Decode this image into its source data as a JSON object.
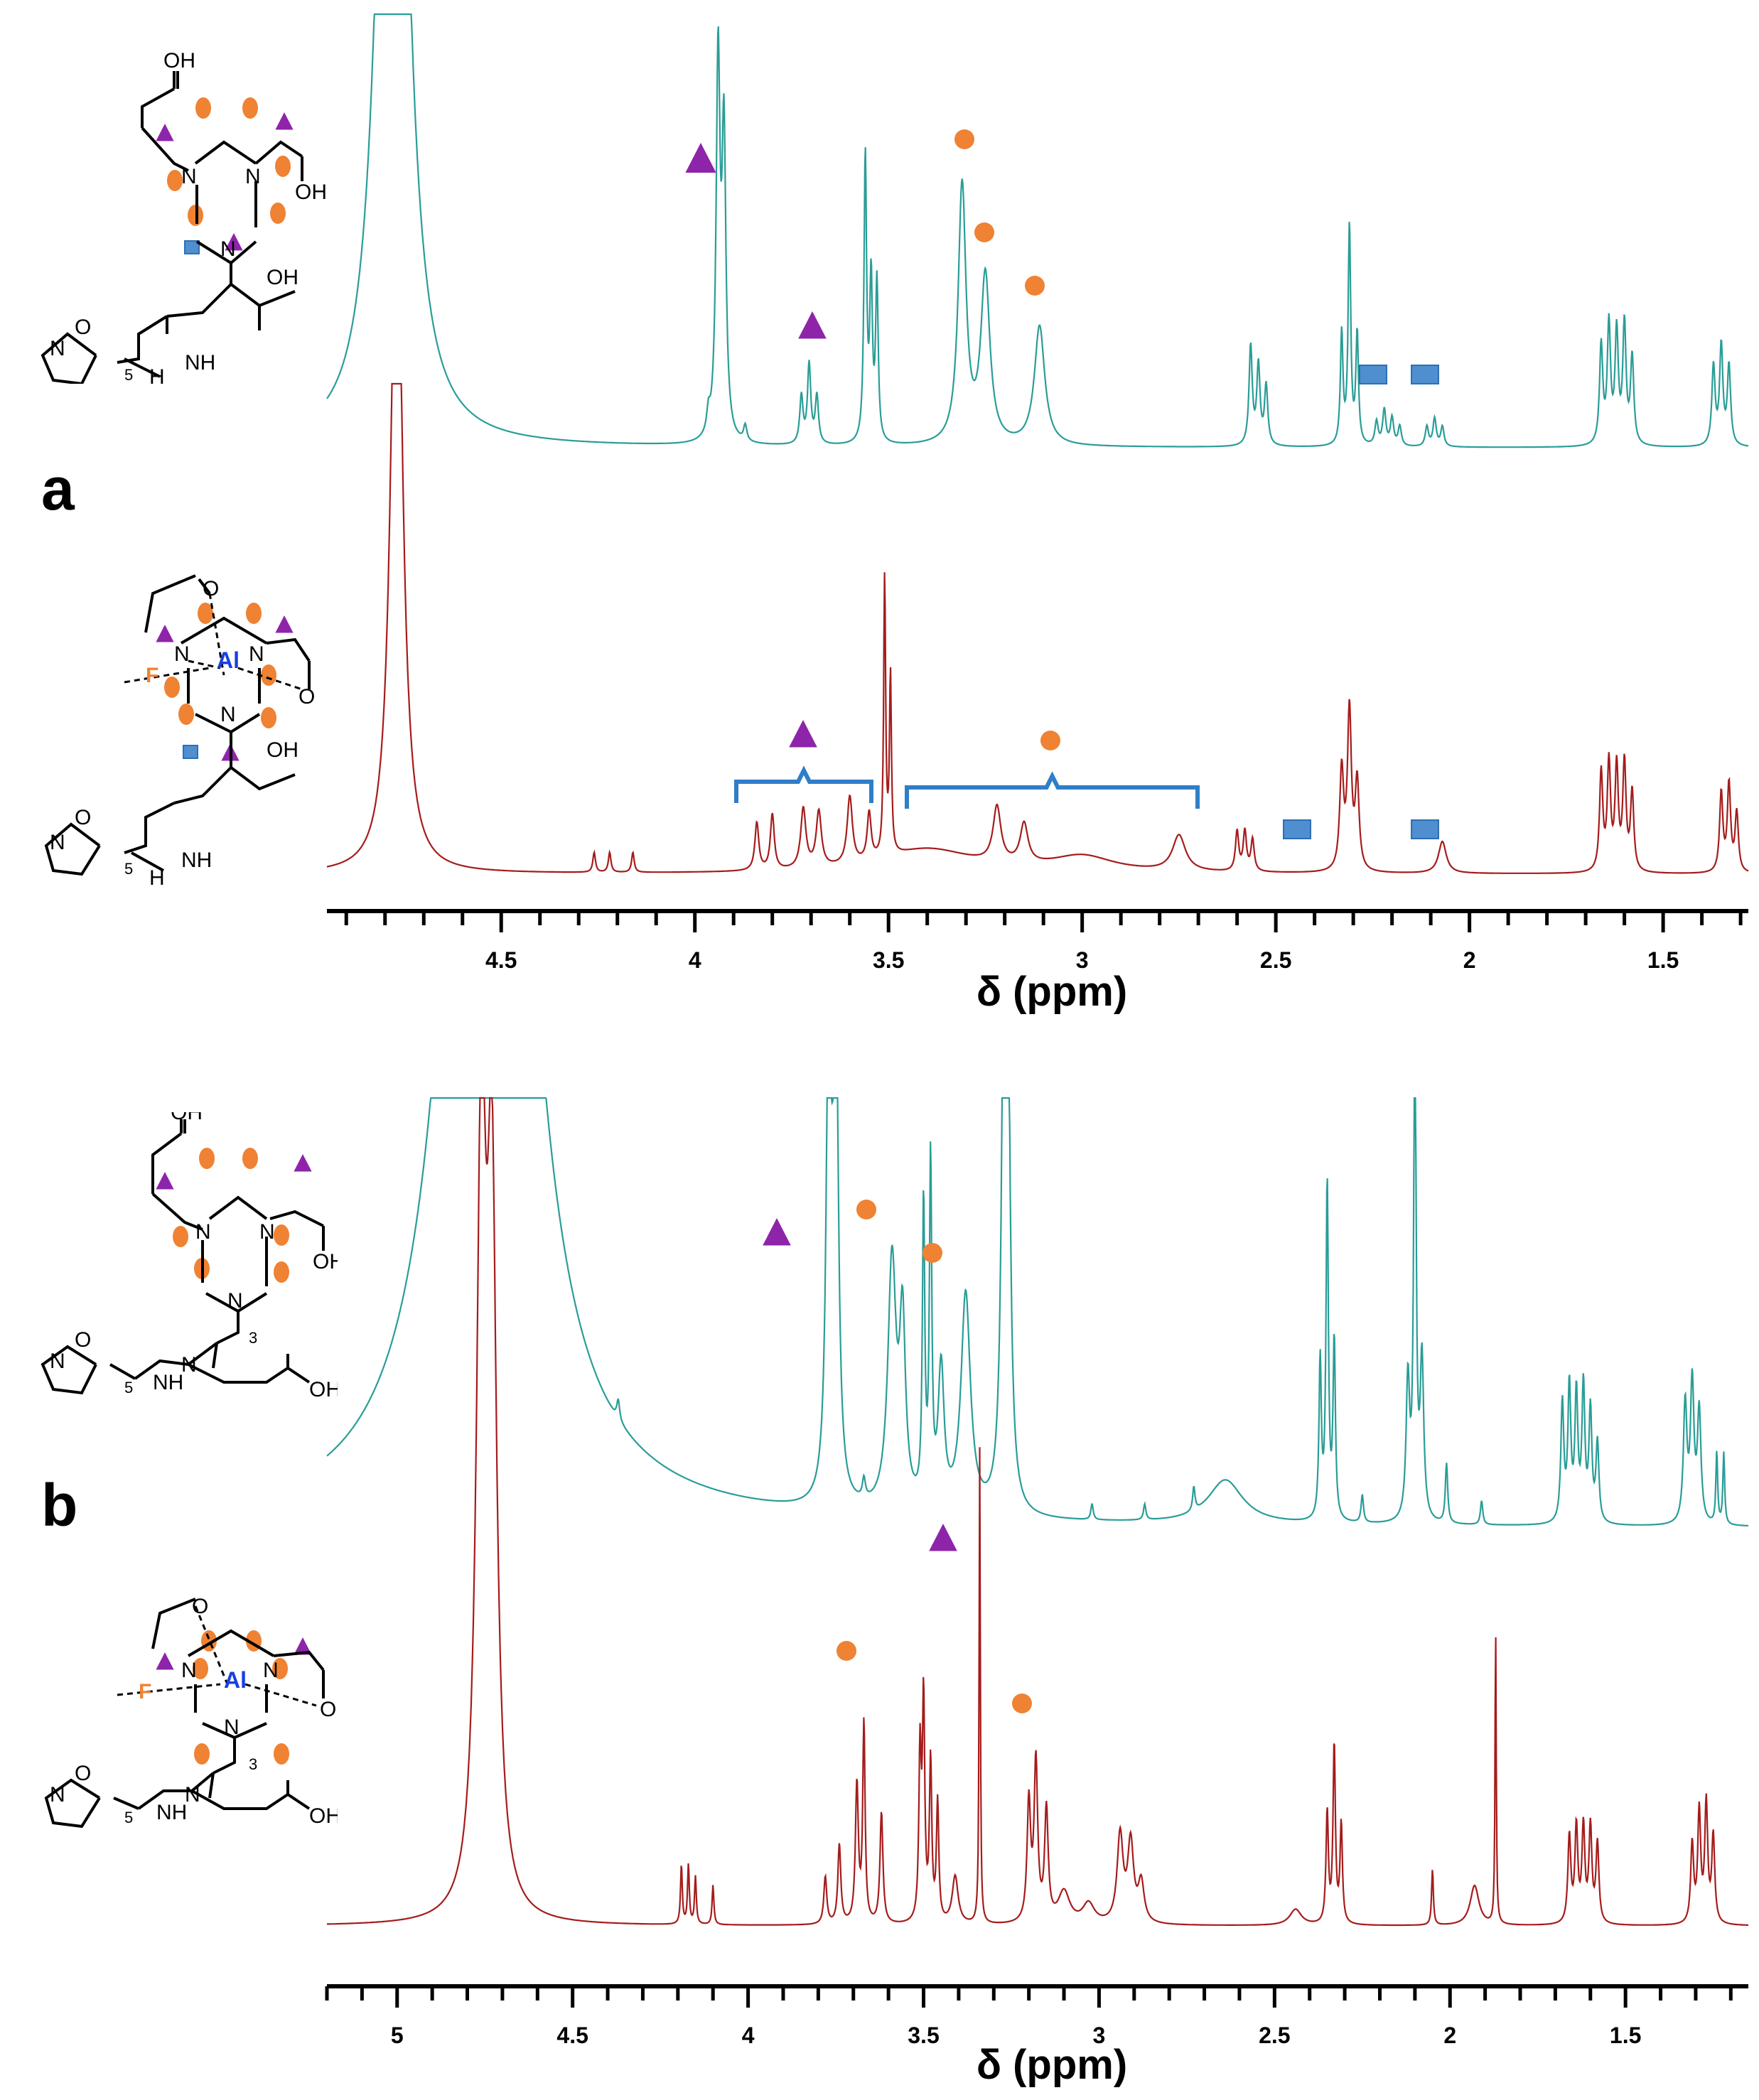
{
  "figure": {
    "panel_a_label": "a",
    "panel_b_label": "b",
    "colors": {
      "ligand_trace": "#2a9d97",
      "complex_trace": "#a51c1c",
      "triangle_marker": "#8e24aa",
      "circle_marker": "#ef8233",
      "square_marker": "#4f8fd0",
      "bracket": "#2f7ec7",
      "aluminium_label": "#1a3fe0",
      "fluorine_label": "#ef8233"
    },
    "structures": {
      "label_OH": "OH",
      "label_O": "O",
      "label_N": "N",
      "label_NH": "NH",
      "label_H": "H",
      "label_Al": "Al",
      "label_F": "F",
      "subscript_5": "5",
      "subscript_3": "3"
    }
  },
  "chart_data": [
    {
      "type": "line",
      "panel": "a",
      "xlabel": "δ (ppm)",
      "xlim": [
        4.95,
        1.28
      ],
      "x_reversed": true,
      "xticks": [
        4.5,
        4,
        3.5,
        3,
        2.5,
        2,
        1.5
      ],
      "xtick_labels": [
        "4.5",
        "4",
        "3.5",
        "3",
        "2.5",
        "2",
        "1.5"
      ],
      "series": [
        {
          "role": "ligand",
          "color": "#2a9d97",
          "peaks": [
            [
              4.79,
              1.5,
              0.035
            ],
            [
              4.77,
              1.5,
              0.035
            ],
            [
              3.965,
              0.05,
              0.005
            ],
            [
              3.94,
              0.95,
              0.006
            ],
            [
              3.925,
              0.75,
              0.006
            ],
            [
              3.87,
              0.04,
              0.005
            ],
            [
              3.725,
              0.12,
              0.005
            ],
            [
              3.705,
              0.2,
              0.005
            ],
            [
              3.685,
              0.12,
              0.005
            ],
            [
              3.56,
              0.72,
              0.004
            ],
            [
              3.545,
              0.4,
              0.004
            ],
            [
              3.53,
              0.4,
              0.004
            ],
            [
              3.31,
              0.65,
              0.012
            ],
            [
              3.25,
              0.42,
              0.014
            ],
            [
              3.11,
              0.3,
              0.016
            ],
            [
              2.565,
              0.25,
              0.005
            ],
            [
              2.545,
              0.2,
              0.005
            ],
            [
              2.525,
              0.15,
              0.005
            ],
            [
              2.33,
              0.28,
              0.004
            ],
            [
              2.31,
              0.55,
              0.004
            ],
            [
              2.29,
              0.28,
              0.004
            ],
            [
              2.24,
              0.06,
              0.005
            ],
            [
              2.22,
              0.09,
              0.005
            ],
            [
              2.2,
              0.07,
              0.005
            ],
            [
              2.18,
              0.05,
              0.005
            ],
            [
              2.11,
              0.05,
              0.005
            ],
            [
              2.09,
              0.07,
              0.005
            ],
            [
              2.07,
              0.05,
              0.005
            ],
            [
              1.66,
              0.25,
              0.005
            ],
            [
              1.64,
              0.3,
              0.005
            ],
            [
              1.62,
              0.28,
              0.005
            ],
            [
              1.6,
              0.3,
              0.005
            ],
            [
              1.58,
              0.22,
              0.005
            ],
            [
              1.37,
              0.2,
              0.005
            ],
            [
              1.35,
              0.25,
              0.005
            ],
            [
              1.33,
              0.2,
              0.005
            ]
          ]
        },
        {
          "role": "Al-F complex",
          "color": "#a51c1c",
          "peaks": [
            [
              4.77,
              1.8,
              0.018
            ],
            [
              4.26,
              0.05,
              0.004
            ],
            [
              4.22,
              0.05,
              0.004
            ],
            [
              4.16,
              0.05,
              0.004
            ],
            [
              3.84,
              0.12,
              0.006
            ],
            [
              3.8,
              0.14,
              0.006
            ],
            [
              3.72,
              0.15,
              0.008
            ],
            [
              3.68,
              0.14,
              0.008
            ],
            [
              3.6,
              0.17,
              0.008
            ],
            [
              3.55,
              0.12,
              0.006
            ],
            [
              3.51,
              0.7,
              0.003
            ],
            [
              3.495,
              0.45,
              0.003
            ],
            [
              3.4,
              0.06,
              0.15
            ],
            [
              3.22,
              0.14,
              0.012
            ],
            [
              3.15,
              0.1,
              0.012
            ],
            [
              3.0,
              0.04,
              0.1
            ],
            [
              2.75,
              0.09,
              0.02
            ],
            [
              2.6,
              0.1,
              0.005
            ],
            [
              2.58,
              0.1,
              0.005
            ],
            [
              2.56,
              0.08,
              0.005
            ],
            [
              2.33,
              0.25,
              0.006
            ],
            [
              2.31,
              0.4,
              0.006
            ],
            [
              2.29,
              0.22,
              0.006
            ],
            [
              2.07,
              0.08,
              0.012
            ],
            [
              1.66,
              0.25,
              0.005
            ],
            [
              1.64,
              0.27,
              0.005
            ],
            [
              1.62,
              0.26,
              0.005
            ],
            [
              1.6,
              0.27,
              0.005
            ],
            [
              1.58,
              0.2,
              0.005
            ],
            [
              1.35,
              0.2,
              0.005
            ],
            [
              1.33,
              0.22,
              0.005
            ],
            [
              1.31,
              0.15,
              0.005
            ]
          ]
        }
      ]
    },
    {
      "type": "line",
      "panel": "b",
      "xlabel": "δ (ppm)",
      "xlim": [
        5.2,
        1.15
      ],
      "x_reversed": true,
      "xticks": [
        5,
        4.5,
        4,
        3.5,
        3,
        2.5,
        2,
        1.5
      ],
      "xtick_labels": [
        "5",
        "4.5",
        "4",
        "3.5",
        "3",
        "2.5",
        "2",
        "1.5"
      ],
      "series": [
        {
          "role": "ligand",
          "color": "#2a9d97",
          "peaks": [
            [
              4.74,
              4.0,
              0.1
            ],
            [
              4.37,
              0.05,
              0.005
            ],
            [
              3.77,
              1.3,
              0.008
            ],
            [
              3.75,
              1.3,
              0.008
            ],
            [
              3.67,
              0.05,
              0.005
            ],
            [
              3.59,
              0.62,
              0.014
            ],
            [
              3.56,
              0.45,
              0.01
            ],
            [
              3.5,
              0.75,
              0.004
            ],
            [
              3.48,
              0.85,
              0.004
            ],
            [
              3.45,
              0.35,
              0.01
            ],
            [
              3.38,
              0.55,
              0.016
            ],
            [
              3.27,
              1.4,
              0.008
            ],
            [
              3.26,
              1.0,
              0.008
            ],
            [
              3.02,
              0.04,
              0.004
            ],
            [
              2.87,
              0.04,
              0.004
            ],
            [
              2.73,
              0.06,
              0.004
            ],
            [
              2.64,
              0.11,
              0.06
            ],
            [
              2.37,
              0.4,
              0.004
            ],
            [
              2.35,
              0.85,
              0.004
            ],
            [
              2.33,
              0.45,
              0.004
            ],
            [
              2.25,
              0.07,
              0.004
            ],
            [
              2.12,
              0.35,
              0.006
            ],
            [
              2.1,
              1.3,
              0.004
            ],
            [
              2.08,
              0.4,
              0.006
            ],
            [
              2.01,
              0.15,
              0.004
            ],
            [
              1.91,
              0.06,
              0.004
            ],
            [
              1.68,
              0.3,
              0.005
            ],
            [
              1.66,
              0.34,
              0.005
            ],
            [
              1.64,
              0.32,
              0.005
            ],
            [
              1.62,
              0.34,
              0.005
            ],
            [
              1.6,
              0.28,
              0.005
            ],
            [
              1.58,
              0.2,
              0.005
            ],
            [
              1.33,
              0.3,
              0.006
            ],
            [
              1.31,
              0.35,
              0.006
            ],
            [
              1.29,
              0.28,
              0.006
            ],
            [
              1.24,
              0.18,
              0.003
            ],
            [
              1.22,
              0.18,
              0.003
            ]
          ]
        },
        {
          "role": "Al-F complex",
          "color": "#a51c1c",
          "peaks": [
            [
              4.76,
              1.9,
              0.016
            ],
            [
              4.73,
              1.7,
              0.016
            ],
            [
              4.19,
              0.15,
              0.003
            ],
            [
              4.17,
              0.15,
              0.003
            ],
            [
              4.15,
              0.12,
              0.003
            ],
            [
              4.1,
              0.1,
              0.003
            ],
            [
              3.78,
              0.12,
              0.005
            ],
            [
              3.74,
              0.2,
              0.005
            ],
            [
              3.69,
              0.35,
              0.005
            ],
            [
              3.67,
              0.5,
              0.004
            ],
            [
              3.62,
              0.28,
              0.005
            ],
            [
              3.51,
              0.42,
              0.004
            ],
            [
              3.5,
              0.55,
              0.004
            ],
            [
              3.48,
              0.4,
              0.004
            ],
            [
              3.46,
              0.3,
              0.004
            ],
            [
              3.41,
              0.12,
              0.01
            ],
            [
              3.34,
              1.2,
              0.002
            ],
            [
              3.2,
              0.3,
              0.006
            ],
            [
              3.18,
              0.4,
              0.006
            ],
            [
              3.15,
              0.28,
              0.006
            ],
            [
              3.1,
              0.08,
              0.02
            ],
            [
              3.03,
              0.05,
              0.02
            ],
            [
              2.94,
              0.22,
              0.01
            ],
            [
              2.91,
              0.2,
              0.01
            ],
            [
              2.88,
              0.1,
              0.01
            ],
            [
              2.44,
              0.04,
              0.02
            ],
            [
              2.35,
              0.28,
              0.004
            ],
            [
              2.33,
              0.45,
              0.004
            ],
            [
              2.31,
              0.25,
              0.004
            ],
            [
              2.05,
              0.14,
              0.003
            ],
            [
              1.93,
              0.1,
              0.015
            ],
            [
              1.87,
              0.74,
              0.002
            ],
            [
              1.66,
              0.22,
              0.005
            ],
            [
              1.64,
              0.24,
              0.005
            ],
            [
              1.62,
              0.24,
              0.005
            ],
            [
              1.6,
              0.24,
              0.005
            ],
            [
              1.58,
              0.2,
              0.005
            ],
            [
              1.31,
              0.2,
              0.005
            ],
            [
              1.29,
              0.28,
              0.005
            ],
            [
              1.27,
              0.3,
              0.005
            ],
            [
              1.25,
              0.22,
              0.005
            ]
          ]
        }
      ]
    }
  ]
}
